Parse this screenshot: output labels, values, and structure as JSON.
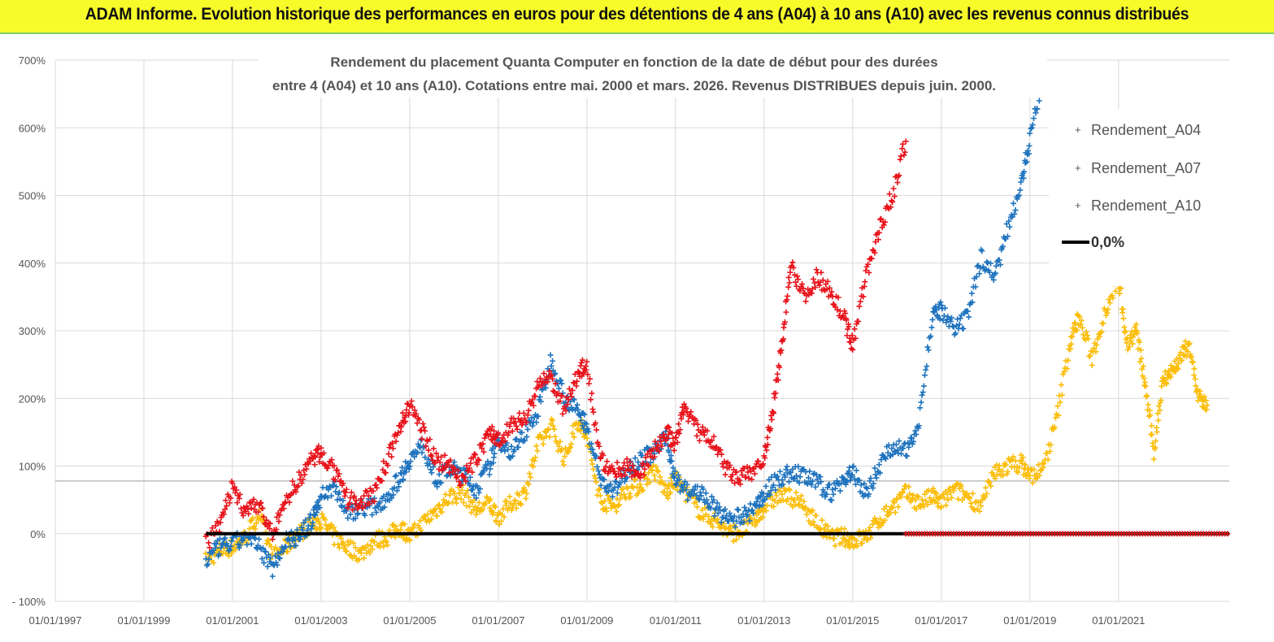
{
  "banner": {
    "title": "ADAM Informe. Evolution historique des performances en euros pour des détentions de 4 ans (A04) à 10 ans (A10) avec les revenus connus distribués"
  },
  "chart_data": {
    "type": "scatter",
    "title_line1": "Rendement du placement Quanta Computer  en fonction de la date de début pour des durées",
    "title_line2": "entre 4 (A04) et 10 ans (A10).  Cotations entre mai. 2000 et mars. 2026. Revenus DISTRIBUES depuis juin. 2000.",
    "xlabel": "",
    "ylabel": "",
    "xlim": [
      1997.0,
      2023.5
    ],
    "ylim": [
      -100,
      700
    ],
    "x_ticks": [
      {
        "value": 1997,
        "label": "01/01/1997"
      },
      {
        "value": 1999,
        "label": "01/01/1999"
      },
      {
        "value": 2001,
        "label": "01/01/2001"
      },
      {
        "value": 2003,
        "label": "01/01/2003"
      },
      {
        "value": 2005,
        "label": "01/01/2005"
      },
      {
        "value": 2007,
        "label": "01/01/2007"
      },
      {
        "value": 2009,
        "label": "01/01/2009"
      },
      {
        "value": 2011,
        "label": "01/01/2011"
      },
      {
        "value": 2013,
        "label": "01/01/2013"
      },
      {
        "value": 2015,
        "label": "01/01/2015"
      },
      {
        "value": 2017,
        "label": "01/01/2017"
      },
      {
        "value": 2019,
        "label": "01/01/2019"
      },
      {
        "value": 2021,
        "label": "01/01/2021"
      }
    ],
    "y_ticks": [
      {
        "value": 700,
        "label": "700%"
      },
      {
        "value": 600,
        "label": "600%"
      },
      {
        "value": 500,
        "label": "500%"
      },
      {
        "value": 400,
        "label": "400%"
      },
      {
        "value": 300,
        "label": "300%"
      },
      {
        "value": 200,
        "label": "200%"
      },
      {
        "value": 100,
        "label": "100%"
      },
      {
        "value": 0,
        "label": "0%"
      },
      {
        "value": -100,
        "label": "- 100%"
      }
    ],
    "reference_line": {
      "name": "0,0%",
      "y": 0,
      "x_start": 2000.4,
      "x_end": 2023.5,
      "color": "#000000"
    },
    "extra_hline": {
      "y": 78,
      "color": "#bdbdbd"
    },
    "series": [
      {
        "name": "Rendement_A04",
        "color": "#fbbd08",
        "marker": "+",
        "points": [
          [
            2000.4,
            -40
          ],
          [
            2000.7,
            -25
          ],
          [
            2001.0,
            -20
          ],
          [
            2001.3,
            -5
          ],
          [
            2001.6,
            30
          ],
          [
            2001.9,
            -35
          ],
          [
            2002.2,
            -20
          ],
          [
            2002.5,
            0
          ],
          [
            2002.8,
            15
          ],
          [
            2003.0,
            20
          ],
          [
            2003.3,
            -5
          ],
          [
            2003.6,
            -20
          ],
          [
            2003.9,
            -30
          ],
          [
            2004.2,
            -10
          ],
          [
            2004.5,
            -5
          ],
          [
            2004.8,
            10
          ],
          [
            2005.0,
            -5
          ],
          [
            2005.3,
            15
          ],
          [
            2005.6,
            35
          ],
          [
            2005.9,
            55
          ],
          [
            2006.2,
            60
          ],
          [
            2006.5,
            35
          ],
          [
            2006.8,
            45
          ],
          [
            2007.0,
            25
          ],
          [
            2007.3,
            45
          ],
          [
            2007.6,
            60
          ],
          [
            2007.9,
            130
          ],
          [
            2008.2,
            160
          ],
          [
            2008.5,
            110
          ],
          [
            2008.8,
            170
          ],
          [
            2009.0,
            140
          ],
          [
            2009.3,
            50
          ],
          [
            2009.6,
            40
          ],
          [
            2009.9,
            65
          ],
          [
            2010.2,
            70
          ],
          [
            2010.5,
            95
          ],
          [
            2010.8,
            60
          ],
          [
            2011.0,
            80
          ],
          [
            2011.3,
            55
          ],
          [
            2011.6,
            30
          ],
          [
            2011.9,
            20
          ],
          [
            2012.2,
            0
          ],
          [
            2012.5,
            5
          ],
          [
            2012.8,
            20
          ],
          [
            2013.0,
            40
          ],
          [
            2013.3,
            55
          ],
          [
            2013.6,
            55
          ],
          [
            2013.9,
            40
          ],
          [
            2014.2,
            15
          ],
          [
            2014.5,
            -5
          ],
          [
            2014.8,
            -5
          ],
          [
            2015.0,
            -10
          ],
          [
            2015.3,
            -5
          ],
          [
            2015.6,
            20
          ],
          [
            2015.9,
            40
          ],
          [
            2016.2,
            60
          ],
          [
            2016.5,
            45
          ],
          [
            2016.8,
            55
          ],
          [
            2017.0,
            45
          ],
          [
            2017.3,
            65
          ],
          [
            2017.6,
            55
          ],
          [
            2017.9,
            40
          ],
          [
            2018.2,
            90
          ],
          [
            2018.5,
            100
          ],
          [
            2018.8,
            105
          ],
          [
            2019.0,
            85
          ],
          [
            2019.3,
            95
          ],
          [
            2019.6,
            170
          ],
          [
            2019.9,
            280
          ],
          [
            2020.1,
            320
          ],
          [
            2020.4,
            260
          ],
          [
            2020.7,
            330
          ],
          [
            2021.0,
            380
          ],
          [
            2021.2,
            280
          ],
          [
            2021.4,
            300
          ],
          [
            2021.6,
            220
          ],
          [
            2021.8,
            120
          ],
          [
            2022.0,
            230
          ],
          [
            2022.2,
            240
          ],
          [
            2022.4,
            260
          ],
          [
            2022.6,
            280
          ],
          [
            2022.8,
            200
          ],
          [
            2023.0,
            190
          ]
        ]
      },
      {
        "name": "Rendement_A07",
        "color": "#1e73be",
        "marker": "+",
        "points": [
          [
            2000.4,
            -40
          ],
          [
            2000.7,
            -20
          ],
          [
            2001.0,
            -15
          ],
          [
            2001.3,
            -5
          ],
          [
            2001.6,
            -20
          ],
          [
            2001.9,
            -50
          ],
          [
            2002.2,
            -10
          ],
          [
            2002.5,
            -5
          ],
          [
            2002.8,
            20
          ],
          [
            2003.0,
            55
          ],
          [
            2003.3,
            70
          ],
          [
            2003.6,
            30
          ],
          [
            2003.9,
            40
          ],
          [
            2004.2,
            40
          ],
          [
            2004.5,
            55
          ],
          [
            2004.8,
            85
          ],
          [
            2005.0,
            110
          ],
          [
            2005.3,
            130
          ],
          [
            2005.6,
            80
          ],
          [
            2005.9,
            95
          ],
          [
            2006.2,
            90
          ],
          [
            2006.5,
            65
          ],
          [
            2006.8,
            100
          ],
          [
            2007.0,
            140
          ],
          [
            2007.3,
            120
          ],
          [
            2007.6,
            150
          ],
          [
            2007.9,
            180
          ],
          [
            2008.2,
            260
          ],
          [
            2008.5,
            200
          ],
          [
            2008.8,
            180
          ],
          [
            2009.0,
            160
          ],
          [
            2009.3,
            80
          ],
          [
            2009.6,
            60
          ],
          [
            2009.9,
            95
          ],
          [
            2010.2,
            110
          ],
          [
            2010.5,
            120
          ],
          [
            2010.8,
            140
          ],
          [
            2011.0,
            80
          ],
          [
            2011.3,
            60
          ],
          [
            2011.6,
            60
          ],
          [
            2011.9,
            35
          ],
          [
            2012.2,
            20
          ],
          [
            2012.5,
            25
          ],
          [
            2012.8,
            35
          ],
          [
            2013.0,
            60
          ],
          [
            2013.3,
            80
          ],
          [
            2013.6,
            90
          ],
          [
            2013.9,
            85
          ],
          [
            2014.2,
            75
          ],
          [
            2014.5,
            60
          ],
          [
            2014.8,
            80
          ],
          [
            2015.0,
            90
          ],
          [
            2015.3,
            60
          ],
          [
            2015.6,
            100
          ],
          [
            2015.9,
            130
          ],
          [
            2016.2,
            120
          ],
          [
            2016.5,
            170
          ],
          [
            2016.8,
            320
          ],
          [
            2017.0,
            330
          ],
          [
            2017.3,
            300
          ],
          [
            2017.6,
            320
          ],
          [
            2017.9,
            410
          ],
          [
            2018.2,
            380
          ],
          [
            2018.5,
            450
          ],
          [
            2018.8,
            520
          ],
          [
            2019.0,
            580
          ],
          [
            2019.3,
            680
          ]
        ]
      },
      {
        "name": "Rendement_A10",
        "color": "#e8131b",
        "marker": "+",
        "points": [
          [
            2000.4,
            -15
          ],
          [
            2000.7,
            10
          ],
          [
            2001.0,
            70
          ],
          [
            2001.3,
            30
          ],
          [
            2001.6,
            45
          ],
          [
            2001.9,
            -5
          ],
          [
            2002.2,
            50
          ],
          [
            2002.5,
            80
          ],
          [
            2002.8,
            110
          ],
          [
            2003.0,
            120
          ],
          [
            2003.3,
            90
          ],
          [
            2003.6,
            50
          ],
          [
            2003.9,
            45
          ],
          [
            2004.2,
            60
          ],
          [
            2004.5,
            110
          ],
          [
            2004.8,
            160
          ],
          [
            2005.0,
            190
          ],
          [
            2005.3,
            150
          ],
          [
            2005.6,
            110
          ],
          [
            2005.9,
            100
          ],
          [
            2006.2,
            80
          ],
          [
            2006.5,
            110
          ],
          [
            2006.8,
            150
          ],
          [
            2007.0,
            140
          ],
          [
            2007.3,
            160
          ],
          [
            2007.6,
            170
          ],
          [
            2007.9,
            220
          ],
          [
            2008.2,
            230
          ],
          [
            2008.5,
            180
          ],
          [
            2008.8,
            240
          ],
          [
            2009.0,
            250
          ],
          [
            2009.3,
            110
          ],
          [
            2009.6,
            90
          ],
          [
            2009.9,
            100
          ],
          [
            2010.2,
            90
          ],
          [
            2010.5,
            120
          ],
          [
            2010.8,
            150
          ],
          [
            2011.0,
            130
          ],
          [
            2011.2,
            190
          ],
          [
            2011.5,
            150
          ],
          [
            2011.8,
            140
          ],
          [
            2012.1,
            100
          ],
          [
            2012.4,
            80
          ],
          [
            2012.7,
            90
          ],
          [
            2013.0,
            110
          ],
          [
            2013.2,
            180
          ],
          [
            2013.4,
            280
          ],
          [
            2013.6,
            400
          ],
          [
            2013.9,
            350
          ],
          [
            2014.2,
            380
          ],
          [
            2014.5,
            360
          ],
          [
            2014.8,
            320
          ],
          [
            2015.0,
            280
          ],
          [
            2015.3,
            380
          ],
          [
            2015.6,
            450
          ],
          [
            2015.9,
            500
          ],
          [
            2016.2,
            580
          ]
        ]
      }
    ],
    "legend": {
      "position": "right",
      "items": [
        {
          "name": "Rendement_A04",
          "color": "#fbbd08",
          "marker": "+"
        },
        {
          "name": "Rendement_A07",
          "color": "#1e73be",
          "marker": "+"
        },
        {
          "name": "Rendement_A10",
          "color": "#e8131b",
          "marker": "+"
        },
        {
          "name": "0,0%",
          "color": "#000000",
          "marker": "line"
        }
      ]
    },
    "zero_markers_from_x": 2016.2
  }
}
